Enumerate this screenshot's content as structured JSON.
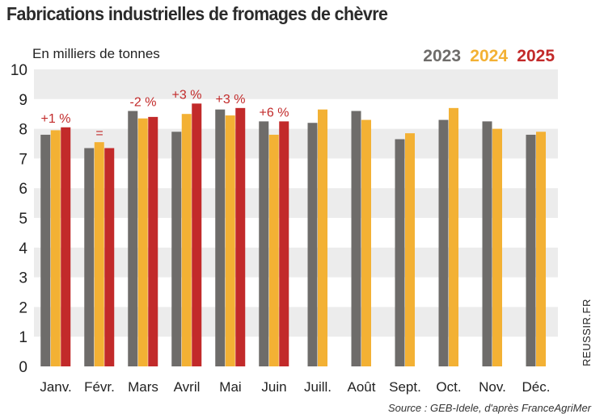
{
  "title": "Fabrications industrielles de fromages de chèvre",
  "unit_label": "En milliers de tonnes",
  "source": "Source : GEB-Idele, d'après FranceAgriMer",
  "credit": "REUSSIR.FR",
  "colors": {
    "2023": "#6e6c6a",
    "2024": "#f3b134",
    "2025": "#c22a2a",
    "band": "#ececec"
  },
  "chart_data": {
    "type": "bar",
    "title": "Fabrications industrielles de fromages de chèvre",
    "ylabel": "En milliers de tonnes",
    "xlabel": "",
    "ylim": [
      0,
      10
    ],
    "yticks": [
      0,
      1,
      2,
      3,
      4,
      5,
      6,
      7,
      8,
      9,
      10
    ],
    "categories": [
      "Janv.",
      "Févr.",
      "Mars",
      "Avril",
      "Mai",
      "Juin",
      "Juill.",
      "Août",
      "Sept.",
      "Oct.",
      "Nov.",
      "Déc."
    ],
    "series": [
      {
        "name": "2023",
        "values": [
          7.8,
          7.35,
          8.6,
          7.9,
          8.65,
          8.25,
          8.2,
          8.6,
          7.65,
          8.3,
          8.25,
          7.8
        ]
      },
      {
        "name": "2024",
        "values": [
          7.95,
          7.55,
          8.35,
          8.5,
          8.45,
          7.8,
          8.65,
          8.3,
          7.85,
          8.7,
          8.0,
          7.9
        ]
      },
      {
        "name": "2025",
        "values": [
          8.05,
          7.35,
          8.4,
          8.85,
          8.7,
          8.25,
          null,
          null,
          null,
          null,
          null,
          null
        ]
      }
    ],
    "annotations": [
      "+1 %",
      "=",
      "-2 %",
      "+3 %",
      "+3 %",
      "+6 %",
      null,
      null,
      null,
      null,
      null,
      null
    ],
    "legend": [
      "2023",
      "2024",
      "2025"
    ],
    "legend_position": "top-right",
    "grid": "alternating horizontal bands"
  }
}
